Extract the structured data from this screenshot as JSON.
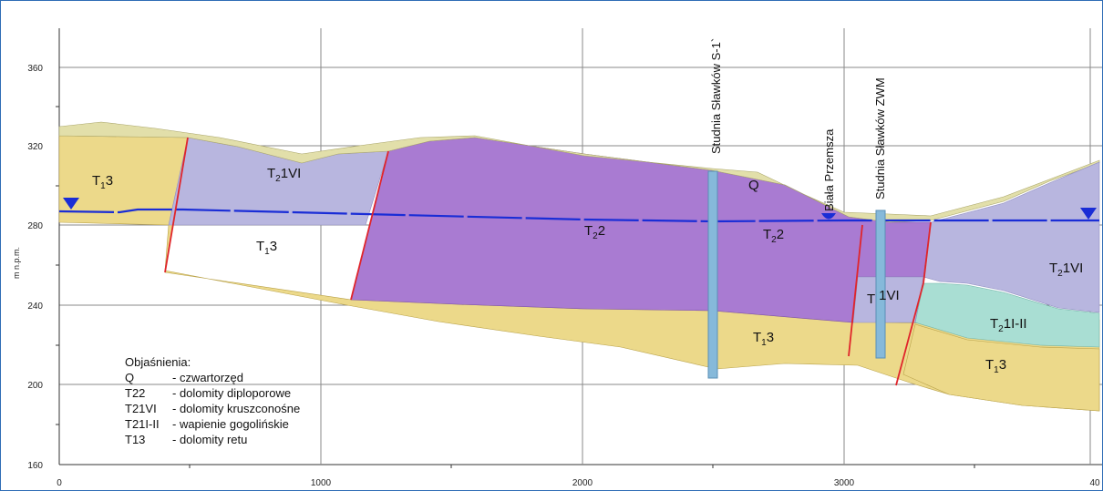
{
  "axes": {
    "y_unit": "m n.p.m.",
    "y_ticks": [
      "360",
      "320",
      "280",
      "240",
      "200",
      "160"
    ],
    "x_ticks": [
      "0",
      "1000",
      "2000",
      "3000",
      "40"
    ]
  },
  "layers": {
    "t13_a": {
      "base": "T",
      "sub": "1",
      "suffix": "3"
    },
    "t13_b": {
      "base": "T",
      "sub": "1",
      "suffix": "3"
    },
    "t13_c": {
      "base": "T",
      "sub": "1",
      "suffix": "3"
    },
    "t13_d": {
      "base": "T",
      "sub": "1",
      "suffix": "3"
    },
    "t21vi_a": {
      "base": "T",
      "sub": "2",
      "suffix": "1VI"
    },
    "t21vi_b": {
      "base": "T",
      "sub": "2",
      "suffix": "1VI"
    },
    "t21vi_c": {
      "base": "T",
      "sub": "",
      "suffix": "1VI"
    },
    "t22_a": {
      "base": "T",
      "sub": "2",
      "suffix": "2"
    },
    "t22_b": {
      "base": "T",
      "sub": "2",
      "suffix": "2"
    },
    "t21ii": {
      "base": "T",
      "sub": "2",
      "suffix": "1I-II"
    },
    "q": "Q"
  },
  "wells": {
    "s1": "Studnia Sławków S-1`",
    "zwm": "Studnia Sławków ZWM",
    "river": "Biała Przemsza"
  },
  "legend": {
    "title": "Objaśnienia:",
    "items": [
      {
        "code": "Q",
        "desc": "- czwartorzęd"
      },
      {
        "code": "T22",
        "desc": "- dolomity diploporowe"
      },
      {
        "code": "T21VI",
        "desc": "- dolomity kruszconośne"
      },
      {
        "code": "T21I-II",
        "desc": "- wapienie gogolińskie"
      },
      {
        "code": "T13",
        "desc": "- dolomity retu"
      }
    ]
  },
  "colors": {
    "t13": "#ecd98a",
    "t21vi": "#b8b6df",
    "t22": "#a97bd2",
    "t21ii": "#a9ded3",
    "q": "#e2dfaa",
    "fault": "#e0252b",
    "water": "#1a2dd6",
    "well": "#86b9da"
  }
}
